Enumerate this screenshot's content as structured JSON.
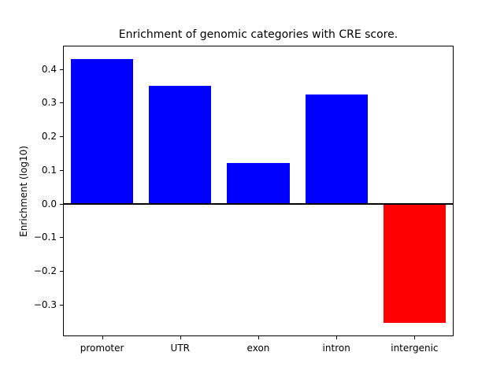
{
  "figure": {
    "background_color": "#ffffff",
    "axes_color": "#000000"
  },
  "chart_data": {
    "type": "bar",
    "title": "Enrichment of genomic categories with CRE score.",
    "xlabel": "",
    "ylabel": "Enrichment (log10)",
    "categories": [
      "promoter",
      "UTR",
      "exon",
      "intron",
      "intergenic"
    ],
    "values": [
      0.43,
      0.35,
      0.12,
      0.325,
      -0.355
    ],
    "positive_color": "#0000ff",
    "negative_color": "#ff0000",
    "ylim": [
      -0.394,
      0.469
    ],
    "yticks": [
      -0.3,
      -0.2,
      -0.1,
      0.0,
      0.1,
      0.2,
      0.3,
      0.4
    ],
    "ytick_labels": [
      "−0.3",
      "−0.2",
      "−0.1",
      "0.0",
      "0.1",
      "0.2",
      "0.3",
      "0.4"
    ],
    "zero_line": true,
    "grid": false,
    "legend": null
  }
}
